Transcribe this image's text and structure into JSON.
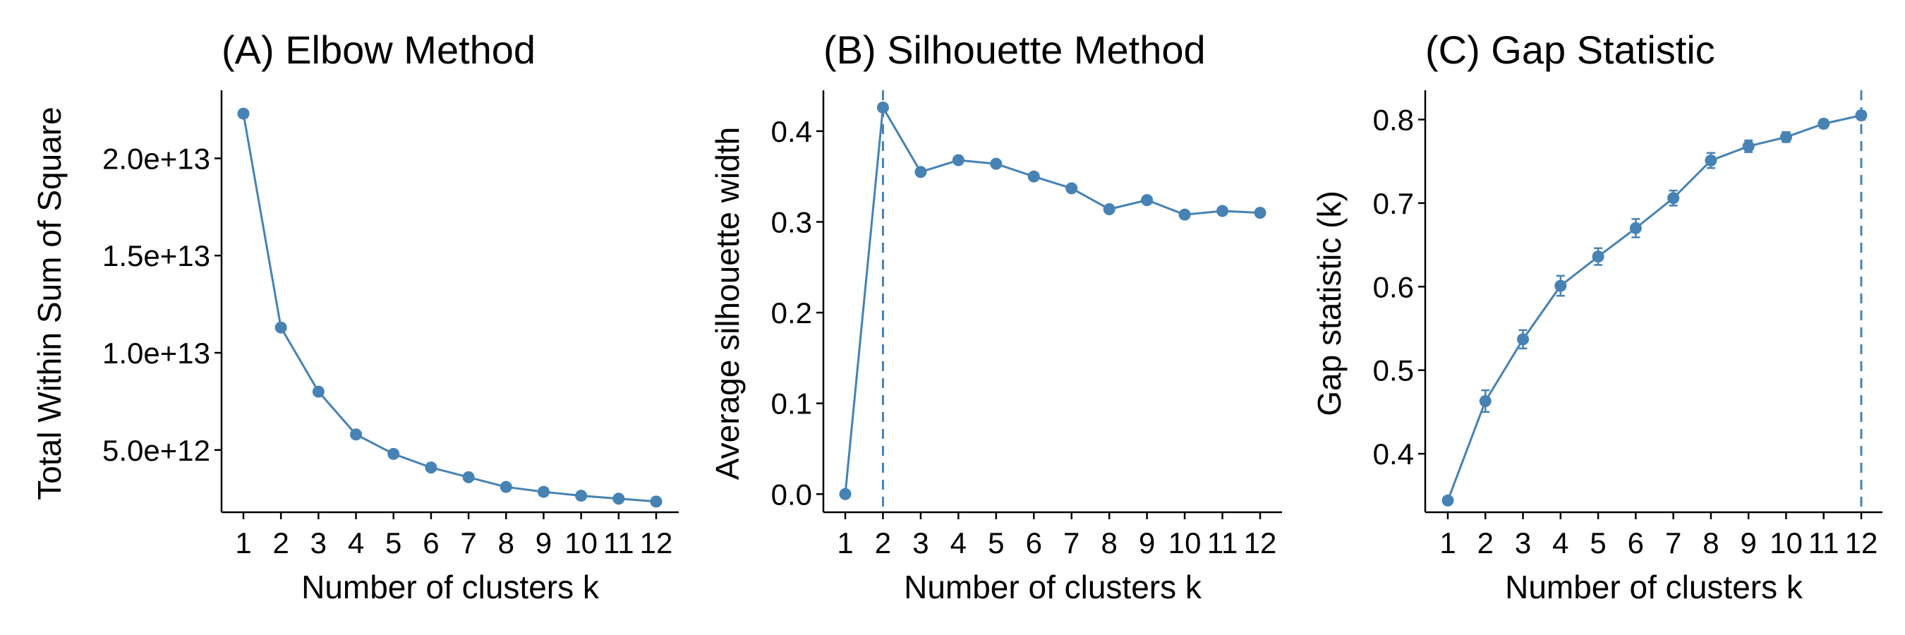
{
  "chart_data": [
    {
      "type": "line",
      "title": "(A) Elbow Method",
      "xlabel": "Number of clusters k",
      "ylabel": "Total Within Sum of Square",
      "x": [
        1,
        2,
        3,
        4,
        5,
        6,
        7,
        8,
        9,
        10,
        11,
        12
      ],
      "x_tick_labels": [
        "1",
        "2",
        "3",
        "4",
        "5",
        "6",
        "7",
        "8",
        "9",
        "10",
        "11",
        "12"
      ],
      "y_ticks": [
        5000000000000,
        10000000000000,
        15000000000000,
        20000000000000
      ],
      "y_tick_labels": [
        "5.0e+12",
        "1.0e+13",
        "1.5e+13",
        "2.0e+13"
      ],
      "ylim": [
        1800000000000,
        23500000000000
      ],
      "values": [
        22300000000000,
        11300000000000,
        8000000000000,
        5800000000000,
        4800000000000,
        4100000000000,
        3600000000000,
        3100000000000,
        2850000000000,
        2650000000000,
        2500000000000,
        2350000000000
      ],
      "grid": false
    },
    {
      "type": "line",
      "title": "(B) Silhouette Method",
      "xlabel": "Number of clusters k",
      "ylabel": "Average silhouette width",
      "x": [
        1,
        2,
        3,
        4,
        5,
        6,
        7,
        8,
        9,
        10,
        11,
        12
      ],
      "x_tick_labels": [
        "1",
        "2",
        "3",
        "4",
        "5",
        "6",
        "7",
        "8",
        "9",
        "10",
        "11",
        "12"
      ],
      "y_ticks": [
        0.0,
        0.1,
        0.2,
        0.3,
        0.4
      ],
      "y_tick_labels": [
        "0.0",
        "0.1",
        "0.2",
        "0.3",
        "0.4"
      ],
      "ylim": [
        -0.02,
        0.445
      ],
      "values": [
        0.0,
        0.426,
        0.355,
        0.368,
        0.364,
        0.35,
        0.337,
        0.314,
        0.324,
        0.308,
        0.312,
        0.31
      ],
      "vline_x": 2,
      "grid": false
    },
    {
      "type": "line",
      "title": "(C) Gap Statistic",
      "xlabel": "Number of clusters k",
      "ylabel": "Gap statistic (k)",
      "x": [
        1,
        2,
        3,
        4,
        5,
        6,
        7,
        8,
        9,
        10,
        11,
        12
      ],
      "x_tick_labels": [
        "1",
        "2",
        "3",
        "4",
        "5",
        "6",
        "7",
        "8",
        "9",
        "10",
        "11",
        "12"
      ],
      "y_ticks": [
        0.4,
        0.5,
        0.6,
        0.7,
        0.8
      ],
      "y_tick_labels": [
        "0.4",
        "0.5",
        "0.6",
        "0.7",
        "0.8"
      ],
      "ylim": [
        0.33,
        0.835
      ],
      "values": [
        0.344,
        0.463,
        0.537,
        0.601,
        0.636,
        0.67,
        0.706,
        0.751,
        0.768,
        0.779,
        0.795,
        0.805
      ],
      "errors": [
        0.004,
        0.013,
        0.011,
        0.012,
        0.01,
        0.011,
        0.009,
        0.009,
        0.007,
        0.006,
        0.005,
        0.005
      ],
      "vline_x": 12,
      "grid": false
    }
  ],
  "style": {
    "series_color": "#4682b4",
    "axis_color": "#000000"
  }
}
